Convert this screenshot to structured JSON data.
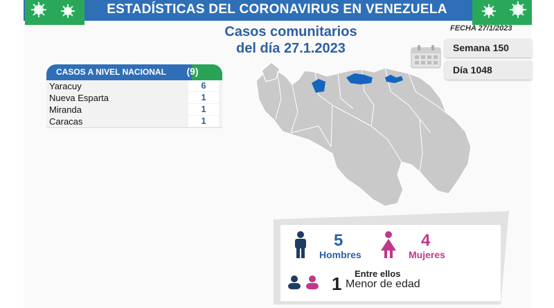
{
  "banner": {
    "title": "ESTADÍSTICAS DEL CORONAVIRUS EN VENEZUELA"
  },
  "subtitle": {
    "line1": "Casos comunitarios",
    "line2": "del día 27.1.2023"
  },
  "fecha": "FECHA 27/1/2023",
  "info": {
    "semana": "Semana 150",
    "dia": "Día 1048"
  },
  "casos": {
    "header": "CASOS A NIVEL NACIONAL",
    "total": "(9)",
    "rows": [
      {
        "state": "Yaracuy",
        "value": "6"
      },
      {
        "state": "Nueva Esparta",
        "value": "1"
      },
      {
        "state": "Miranda",
        "value": "1"
      },
      {
        "state": "Caracas",
        "value": "1"
      }
    ]
  },
  "gender": {
    "men_count": "5",
    "men_label": "Hombres",
    "women_count": "4",
    "women_label": "Mujeres",
    "minor_title": "Entre ellos",
    "minor_count": "1",
    "minor_label": "Menor de edad"
  },
  "colors": {
    "brand_blue": "#2f6fb8",
    "green": "#29a357",
    "men": "#2e5fa3",
    "women": "#c0388b",
    "highlight": "#1565c0",
    "map_gray": "#c9c9c9"
  },
  "icons": [
    "virus-icon",
    "calendar-icon",
    "man-icon",
    "woman-icon",
    "children-icon"
  ]
}
